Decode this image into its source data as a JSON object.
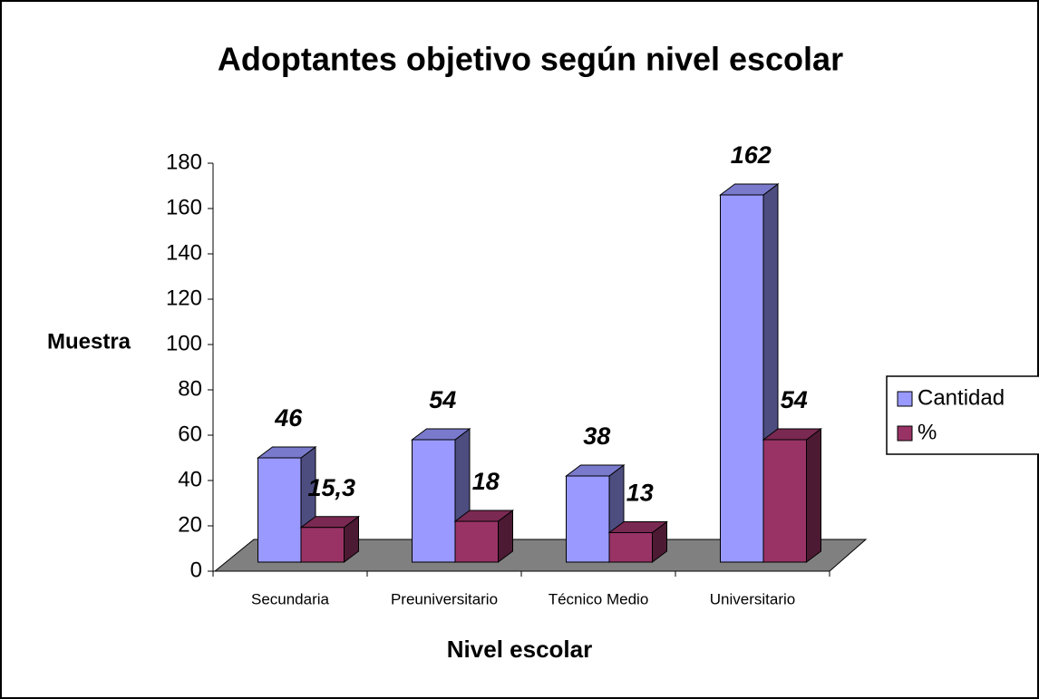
{
  "chart_data": {
    "type": "bar3d",
    "title": "Adoptantes objetivo según nivel escolar",
    "ylabel": "Muestra",
    "xlabel": "Nivel escolar",
    "categories": [
      "Secundaria",
      "Preuniversitario",
      "Técnico Medio",
      "Universitario"
    ],
    "series": [
      {
        "name": "Cantidad",
        "color": "#9999ff",
        "values": [
          46,
          54,
          38,
          162
        ]
      },
      {
        "name": "%",
        "color": "#993366",
        "values": [
          15.3,
          18,
          13,
          54
        ],
        "value_labels": [
          "15,3",
          "18",
          "13",
          "54"
        ]
      }
    ],
    "ylim": [
      0,
      180
    ],
    "yticks": [
      0,
      20,
      40,
      60,
      80,
      100,
      120,
      140,
      160,
      180
    ],
    "legend": "right"
  }
}
